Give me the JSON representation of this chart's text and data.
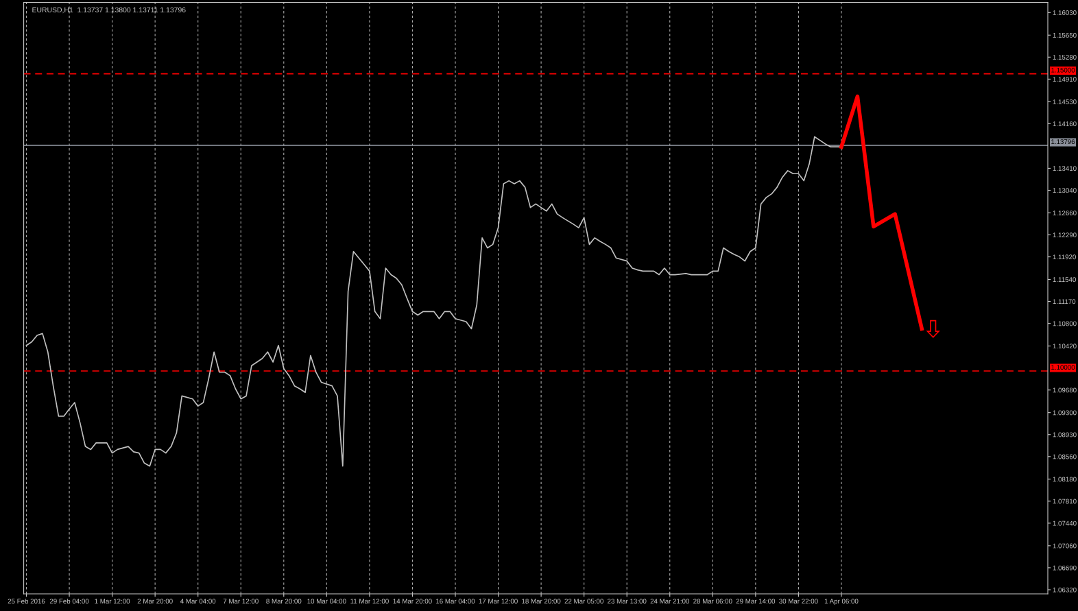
{
  "chart_data": {
    "type": "line",
    "title": "EURUSD,H1  1.13737 1.13800 1.13711 1.13796",
    "categories": [
      "25 Feb 2016",
      null,
      null,
      null,
      null,
      null,
      null,
      null,
      "29 Feb 04:00",
      null,
      null,
      null,
      null,
      null,
      null,
      null,
      "1 Mar 12:00",
      null,
      null,
      null,
      null,
      null,
      null,
      null,
      "2 Mar 20:00",
      null,
      null,
      null,
      null,
      null,
      null,
      null,
      "4 Mar 04:00",
      null,
      null,
      null,
      null,
      null,
      null,
      null,
      "7 Mar 12:00",
      null,
      null,
      null,
      null,
      null,
      null,
      null,
      "8 Mar 20:00",
      null,
      null,
      null,
      null,
      null,
      null,
      null,
      "10 Mar 04:00",
      null,
      null,
      null,
      null,
      null,
      null,
      null,
      "11 Mar 12:00",
      null,
      null,
      null,
      null,
      null,
      null,
      null,
      "14 Mar 20:00",
      null,
      null,
      null,
      null,
      null,
      null,
      null,
      "16 Mar 04:00",
      null,
      null,
      null,
      null,
      null,
      null,
      null,
      "17 Mar 12:00",
      null,
      null,
      null,
      null,
      null,
      null,
      null,
      "18 Mar 20:00",
      null,
      null,
      null,
      null,
      null,
      null,
      null,
      "22 Mar 05:00",
      null,
      null,
      null,
      null,
      null,
      null,
      null,
      "23 Mar 13:00",
      null,
      null,
      null,
      null,
      null,
      null,
      null,
      "24 Mar 21:00",
      null,
      null,
      null,
      null,
      null,
      null,
      null,
      "28 Mar 06:00",
      null,
      null,
      null,
      null,
      null,
      null,
      null,
      "29 Mar 14:00",
      null,
      null,
      null,
      null,
      null,
      null,
      null,
      "30 Mar 22:00",
      null,
      null,
      null,
      null,
      null,
      null,
      null,
      "1 Apr 06:00",
      null,
      null,
      null,
      null,
      null,
      null,
      null,
      null,
      null,
      null,
      null,
      null,
      null,
      null,
      null,
      null,
      null,
      null,
      null,
      null,
      null,
      null,
      null,
      null,
      null,
      null,
      null,
      null,
      null,
      null,
      null,
      null,
      null,
      null,
      null,
      null,
      null,
      null
    ],
    "series": [
      {
        "color": "#c0c0c0",
        "values": [
          1.1043,
          1.1049,
          1.106,
          1.1063,
          1.1032,
          1.0975,
          1.0924,
          1.0924,
          1.0936,
          1.0947,
          1.0913,
          1.0873,
          1.0868,
          1.0879,
          1.0879,
          1.0879,
          1.0862,
          1.0868,
          null,
          1.0873,
          1.0864,
          1.0862,
          1.0845,
          1.084,
          1.0868,
          1.0868,
          1.0862,
          1.0873,
          1.0896,
          1.0958,
          null,
          1.0953,
          1.0941,
          1.0947,
          1.0987,
          1.1032,
          1.0998,
          1.0998,
          1.0992,
          1.097,
          1.0953,
          1.0958,
          1.1009,
          1.1015,
          1.1021,
          1.1032,
          1.1015,
          1.1043,
          1.1004,
          1.0992,
          1.0975,
          1.097,
          1.0964,
          1.1026,
          1.0998,
          1.0981,
          null,
          1.0975,
          1.0958,
          1.084,
          1.1134,
          1.1201,
          1.119,
          1.1179,
          1.1168,
          1.11,
          1.1088,
          1.1173,
          1.1162,
          1.1156,
          1.1145,
          1.1122,
          1.11,
          1.1094,
          1.11,
          1.11,
          1.11,
          1.1088,
          1.11,
          1.11,
          1.1088,
          null,
          1.1083,
          1.1071,
          1.1111,
          1.1224,
          1.1207,
          1.1213,
          1.1241,
          1.1315,
          1.132,
          1.1315,
          1.132,
          1.1309,
          1.1275,
          1.1281,
          1.1275,
          1.1269,
          1.1281,
          1.1264,
          1.1258,
          null,
          1.1247,
          1.1241,
          1.1258,
          1.1213,
          1.1224,
          1.1218,
          1.1213,
          1.1207,
          1.119,
          null,
          1.1185,
          1.1173,
          1.117,
          1.1168,
          null,
          1.1168,
          1.1162,
          1.1173,
          1.1162,
          1.1162,
          null,
          1.1164,
          1.1162,
          1.1162,
          null,
          1.1162,
          1.1168,
          1.1168,
          1.1207,
          1.1201,
          1.1196,
          1.1192,
          1.1185,
          1.1201,
          1.1207,
          1.1281,
          1.1292,
          1.1298,
          1.1309,
          1.1326,
          1.1337,
          1.1332,
          1.1332,
          1.132,
          1.1348,
          1.1394,
          1.1388,
          1.1382,
          1.1377,
          null,
          1.1377,
          null,
          null,
          null,
          null,
          null,
          null,
          null,
          null,
          null,
          null,
          null,
          null,
          null,
          null,
          null,
          null,
          null,
          null,
          null,
          null,
          null,
          null,
          null,
          null,
          null,
          null,
          null,
          null,
          null,
          null,
          null,
          null,
          null,
          null,
          null,
          null,
          null,
          null
        ]
      },
      {
        "color": "#ff0000",
        "values": [
          null,
          null,
          null,
          null,
          null,
          null,
          null,
          null,
          null,
          null,
          null,
          null,
          null,
          null,
          null,
          null,
          null,
          null,
          null,
          null,
          null,
          null,
          null,
          null,
          null,
          null,
          null,
          null,
          null,
          null,
          null,
          null,
          null,
          null,
          null,
          null,
          null,
          null,
          null,
          null,
          null,
          null,
          null,
          null,
          null,
          null,
          null,
          null,
          null,
          null,
          null,
          null,
          null,
          null,
          null,
          null,
          null,
          null,
          null,
          null,
          null,
          null,
          null,
          null,
          null,
          null,
          null,
          null,
          null,
          null,
          null,
          null,
          null,
          null,
          null,
          null,
          null,
          null,
          null,
          null,
          null,
          null,
          null,
          null,
          null,
          null,
          null,
          null,
          null,
          null,
          null,
          null,
          null,
          null,
          null,
          null,
          null,
          null,
          null,
          null,
          null,
          null,
          null,
          null,
          null,
          null,
          null,
          null,
          null,
          null,
          null,
          null,
          null,
          null,
          null,
          null,
          null,
          null,
          null,
          null,
          null,
          null,
          null,
          null,
          null,
          null,
          null,
          null,
          null,
          null,
          null,
          null,
          null,
          null,
          null,
          null,
          null,
          null,
          null,
          null,
          null,
          null,
          null,
          null,
          null,
          null,
          null,
          null,
          null,
          null,
          null,
          null,
          1.1377,
          null,
          null,
          1.1462,
          null,
          null,
          1.1243,
          null,
          null,
          null,
          1.1264,
          null,
          null,
          null,
          null,
          1.1071,
          null,
          null,
          null,
          null,
          null,
          null,
          null,
          null,
          null,
          null,
          null,
          null,
          null,
          null,
          null,
          null,
          null,
          null,
          null,
          null,
          null,
          null,
          null
        ]
      }
    ],
    "ylim": [
      1.0625,
      1.162
    ],
    "yticks": [
      {
        "value": 1.1603,
        "label": "1.16030"
      },
      {
        "value": 1.1565,
        "label": "1.15650"
      },
      {
        "value": 1.1528,
        "label": "1.15280"
      },
      {
        "value": 1.1491,
        "label": "1.14910"
      },
      {
        "value": 1.1453,
        "label": "1.14530"
      },
      {
        "value": 1.1416,
        "label": "1.14160"
      },
      {
        "value": 1.1341,
        "label": "1.13410"
      },
      {
        "value": 1.1304,
        "label": "1.13040"
      },
      {
        "value": 1.1266,
        "label": "1.12660"
      },
      {
        "value": 1.1229,
        "label": "1.12290"
      },
      {
        "value": 1.1192,
        "label": "1.11920"
      },
      {
        "value": 1.1154,
        "label": "1.11540"
      },
      {
        "value": 1.1117,
        "label": "1.11170"
      },
      {
        "value": 1.108,
        "label": "1.10800"
      },
      {
        "value": 1.1042,
        "label": "1.10420"
      },
      {
        "value": 1.0968,
        "label": "1.09680"
      },
      {
        "value": 1.093,
        "label": "1.09300"
      },
      {
        "value": 1.0893,
        "label": "1.08930"
      },
      {
        "value": 1.0856,
        "label": "1.08560"
      },
      {
        "value": 1.0818,
        "label": "1.08180"
      },
      {
        "value": 1.0781,
        "label": "1.07810"
      },
      {
        "value": 1.0744,
        "label": "1.07440"
      },
      {
        "value": 1.0706,
        "label": "1.07060"
      },
      {
        "value": 1.0669,
        "label": "1.06690"
      },
      {
        "value": 1.0632,
        "label": "1.06320"
      }
    ],
    "ref_lines": [
      {
        "axis": "y",
        "value": 1.15,
        "label": "1.15000",
        "color": "#ff0000",
        "line_style": "dashed"
      },
      {
        "axis": "y",
        "value": 1.1,
        "label": "1.10000",
        "color": "#ff0000",
        "line_style": "dashed"
      },
      {
        "axis": "y",
        "value": 1.13796,
        "label": "1.13796",
        "color": "#8a8f99",
        "line_style": "solid"
      }
    ],
    "grid": "x",
    "legend": false,
    "marker": "none",
    "line_style": "solid"
  }
}
